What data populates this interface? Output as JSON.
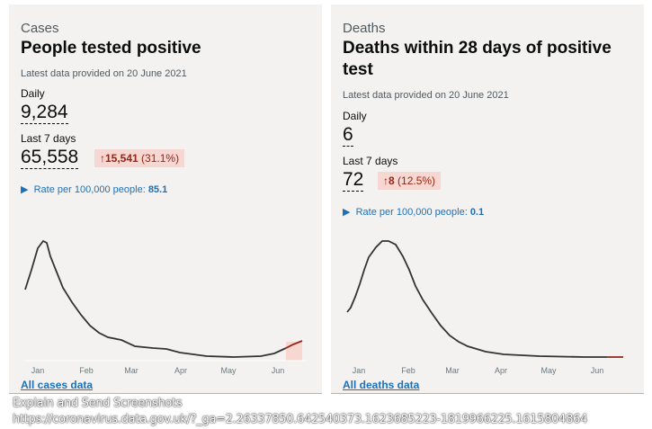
{
  "cases": {
    "category": "Cases",
    "title": "People tested positive",
    "latest": "Latest data provided on 20 June 2021",
    "daily_label": "Daily",
    "daily_value": "9,284",
    "week_label": "Last 7 days",
    "week_value": "65,558",
    "change_arrow": "↑",
    "change_value": "15,541",
    "change_pct": "(31.1%)",
    "rate_label": "Rate per 100,000 people:",
    "rate_value": "85.1",
    "months": [
      "Jan",
      "Feb",
      "Mar",
      "Apr",
      "May",
      "Jun"
    ],
    "link": "All cases data"
  },
  "deaths": {
    "category": "Deaths",
    "title": "Deaths within 28 days of positive test",
    "latest": "Latest data provided on 20 June 2021",
    "daily_label": "Daily",
    "daily_value": "6",
    "week_label": "Last 7 days",
    "week_value": "72",
    "change_arrow": "↑",
    "change_value": "8",
    "change_pct": "(12.5%)",
    "rate_label": "Rate per 100,000 people:",
    "rate_value": "0.1",
    "months": [
      "Jan",
      "Feb",
      "Mar",
      "Apr",
      "May",
      "Jun"
    ],
    "link": "All deaths data"
  },
  "overlay": {
    "line1": "Explain and Send Screenshots",
    "line2": "https://coronavirus.data.gov.uk/?_ga=2.26337850.642540373.1623685223-1819966225.1615804864"
  },
  "colors": {
    "accent": "#1d70b8",
    "increase": "#942514",
    "increase_bg": "#f6d7d2"
  }
}
